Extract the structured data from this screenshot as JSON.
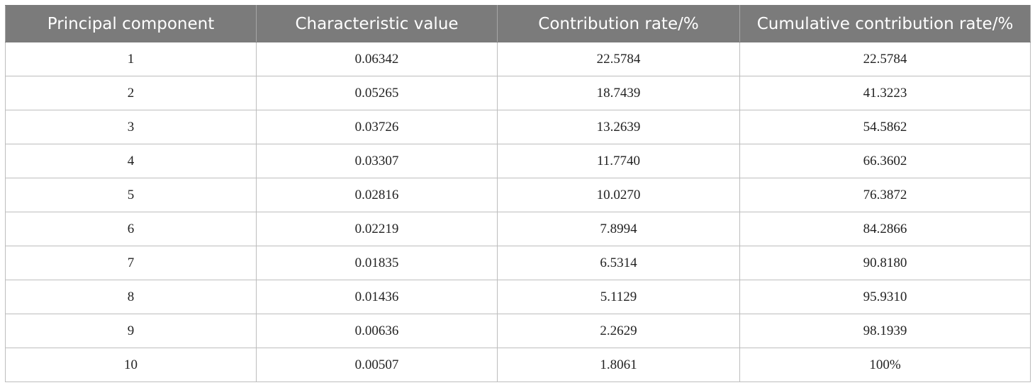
{
  "table": {
    "headers": [
      "Principal component",
      "Characteristic value",
      "Contribution rate/%",
      "Cumulative contribution rate/%"
    ],
    "rows": [
      [
        "1",
        "0.06342",
        "22.5784",
        "22.5784"
      ],
      [
        "2",
        "0.05265",
        "18.7439",
        "41.3223"
      ],
      [
        "3",
        "0.03726",
        "13.2639",
        "54.5862"
      ],
      [
        "4",
        "0.03307",
        "11.7740",
        "66.3602"
      ],
      [
        "5",
        "0.02816",
        "10.0270",
        "76.3872"
      ],
      [
        "6",
        "0.02219",
        "7.8994",
        "84.2866"
      ],
      [
        "7",
        "0.01835",
        "6.5314",
        "90.8180"
      ],
      [
        "8",
        "0.01436",
        "5.1129",
        "95.9310"
      ],
      [
        "9",
        "0.00636",
        "2.2629",
        "98.1939"
      ],
      [
        "10",
        "0.00507",
        "1.8061",
        "100%"
      ]
    ]
  },
  "colors": {
    "header_background": "#7b7b7b",
    "header_text": "#ffffff",
    "grid_line": "#bdbdbd"
  }
}
